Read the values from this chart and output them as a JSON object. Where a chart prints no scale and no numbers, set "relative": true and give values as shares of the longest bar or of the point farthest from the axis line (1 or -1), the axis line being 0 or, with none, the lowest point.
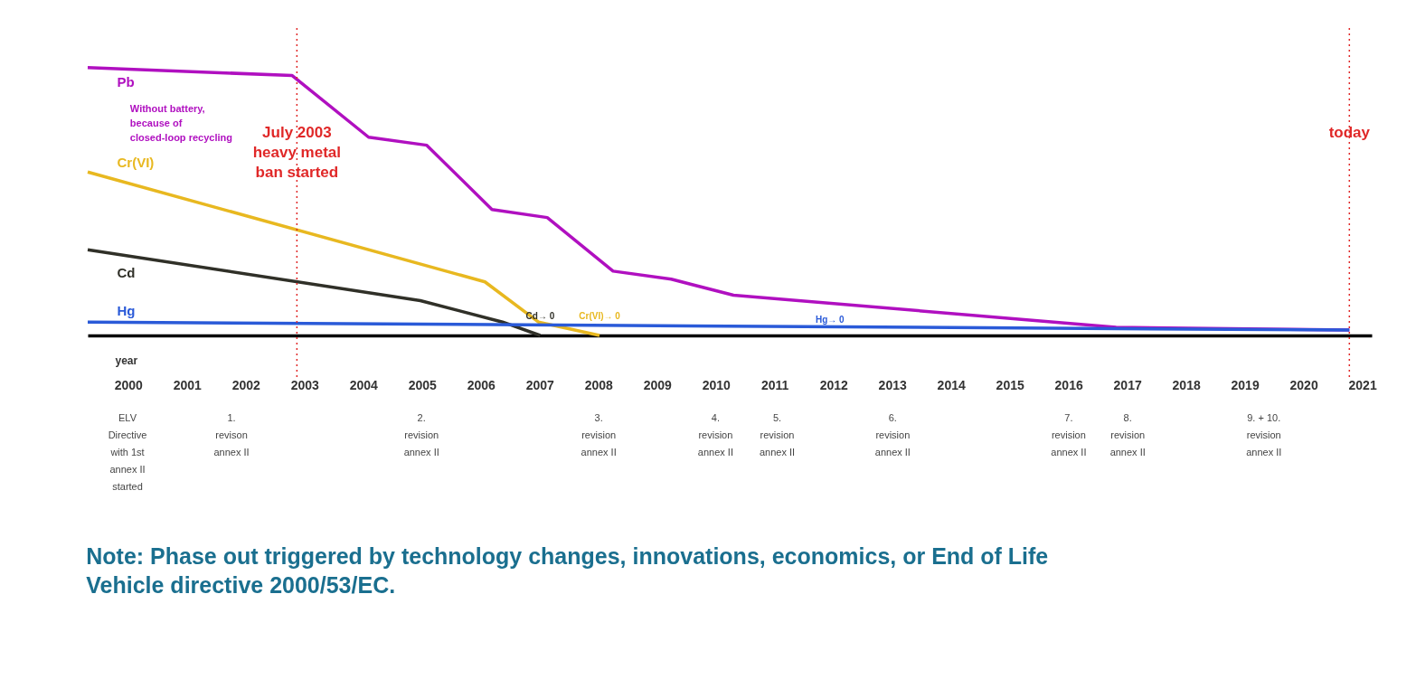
{
  "chart_data": {
    "type": "line",
    "relative": true,
    "xlabel": "year",
    "xlim": [
      1999.31,
      2021.16
    ],
    "xticks": [
      2000,
      2001,
      2002,
      2003,
      2004,
      2005,
      2006,
      2007,
      2008,
      2009,
      2010,
      2011,
      2012,
      2013,
      2014,
      2015,
      2016,
      2017,
      2018,
      2019,
      2020,
      2021
    ],
    "grid": false,
    "marker": "none",
    "line_style": "solid",
    "series": [
      {
        "name": "Pb",
        "color": "#b010c0",
        "x": [
          1999.31,
          2002.79,
          2004.09,
          2005.08,
          2006.19,
          2007.13,
          2008.25,
          2009.24,
          2010.3,
          2015.75,
          2016.81,
          2020.78
        ],
        "values": [
          1,
          0.97,
          0.74,
          0.71,
          0.47,
          0.44,
          0.24,
          0.21,
          0.15,
          0.05,
          0.03,
          0.02
        ]
      },
      {
        "name": "Cr(VI)",
        "color": "#e8b820",
        "x": [
          1999.31,
          2006.07,
          2006.98,
          2008.02
        ],
        "values": [
          0.61,
          0.2,
          0.05,
          0
        ]
      },
      {
        "name": "Cd",
        "color": "#303028",
        "x": [
          1999.31,
          2004.97,
          2006.37,
          2007.01
        ],
        "values": [
          0.32,
          0.13,
          0.05,
          0
        ]
      },
      {
        "name": "Hg",
        "color": "#2a5ad8",
        "x": [
          1999.31,
          2020.78
        ],
        "values": [
          0.05,
          0.02
        ]
      }
    ],
    "ref_lines": [
      {
        "axis": "x",
        "value": 2002.87,
        "label": "July 2003 heavy metal ban started",
        "color": "#e02828",
        "line_style": "dotted"
      },
      {
        "axis": "x",
        "value": 2020.78,
        "label": "today",
        "color": "#e02828",
        "line_style": "dotted"
      }
    ],
    "annotations": [
      {
        "text": "Cd→ 0",
        "x": 2007.01,
        "y": 0
      },
      {
        "text": "Cr(VI)→ 0",
        "x": 2008.02,
        "y": 0
      },
      "Without battery, because of closed-loop recycling",
      "Hg→ 0",
      "ELV Directive with 1st annex II started",
      "1. revison annex II",
      "2. revision annex II",
      "3. revision annex II",
      "4. revision annex II",
      "5. revision annex II",
      "6. revision annex II",
      "7. revision annex II",
      "8. revision annex II",
      "9. + 10. revision annex II",
      "Note: Phase out triggered by technology changes, innovations, economics, or End of Life Vehicle directive 2000/53/EC."
    ]
  }
}
